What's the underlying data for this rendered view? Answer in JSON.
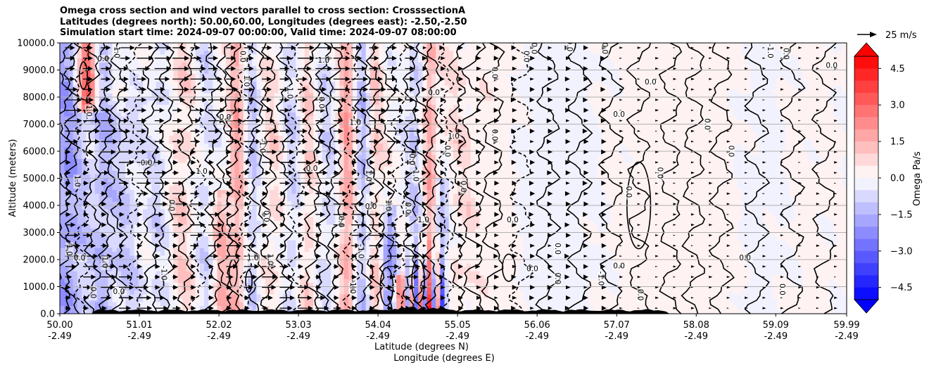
{
  "chart_data": {
    "type": "cross-section",
    "title_lines": [
      "Omega cross section and wind vectors parallel to cross section: CrosssectionA",
      "Latitudes (degrees north): 50.00,60.00, Longitudes (degrees east): -2.50,-2.50",
      "Simulation start time: 2024-09-07 00:00:00, Valid time: 2024-09-07 08:00:00"
    ],
    "ylabel": "Altitude (meters)",
    "xlabel_lat": "Latitude (degrees N)",
    "xlabel_lon": "Longitude (degrees E)",
    "ylim": [
      0,
      10000
    ],
    "y_ticks": [
      "0.0",
      "1000.0",
      "2000.0",
      "3000.0",
      "4000.0",
      "5000.0",
      "6000.0",
      "7000.0",
      "8000.0",
      "9000.0",
      "10000.0"
    ],
    "x_lat_ticks": [
      "50.00",
      "51.01",
      "52.02",
      "53.03",
      "54.04",
      "55.05",
      "56.06",
      "57.07",
      "58.08",
      "59.09",
      "59.99"
    ],
    "x_lon_ticks": [
      "-2.49",
      "-2.49",
      "-2.49",
      "-2.49",
      "-2.49",
      "-2.49",
      "-2.49",
      "-2.49",
      "-2.49",
      "-2.49",
      "-2.49"
    ],
    "grid": true,
    "colorbar": {
      "label": "Omega Pa/s",
      "range": [
        -5.0,
        5.0
      ],
      "ticks": [
        "4.5",
        "3.0",
        "1.5",
        "0.0",
        "−1.5",
        "−3.0",
        "−4.5"
      ],
      "tick_values": [
        4.5,
        3.0,
        1.5,
        0.0,
        -1.5,
        -3.0,
        -4.5
      ],
      "levels": 20,
      "cmap": "bwr"
    },
    "quiver_key": "25 m/s",
    "contour_labels": [
      {
        "text": "0.0",
        "lat": 50.55,
        "alt": 9350
      },
      {
        "text": "-1.0",
        "lat": 50.7,
        "alt": 9700
      },
      {
        "text": "1.0",
        "lat": 50.35,
        "alt": 7500
      },
      {
        "text": "0.0",
        "lat": 51.1,
        "alt": 5500
      },
      {
        "text": "1.0",
        "lat": 50.2,
        "alt": 4900
      },
      {
        "text": "-1.0",
        "lat": 50.1,
        "alt": 2400
      },
      {
        "text": "0.0",
        "lat": 50.25,
        "alt": 2000
      },
      {
        "text": "1.0",
        "lat": 50.55,
        "alt": 1900
      },
      {
        "text": "0.0",
        "lat": 50.4,
        "alt": 780
      },
      {
        "text": "0.0",
        "lat": 50.75,
        "alt": 750
      },
      {
        "text": "-1.0",
        "lat": 51.3,
        "alt": 1500
      },
      {
        "text": "0.0",
        "lat": 51.4,
        "alt": 4000
      },
      {
        "text": "1.0",
        "lat": 51.8,
        "alt": 5200
      },
      {
        "text": "0.0",
        "lat": 52.3,
        "alt": 9500
      },
      {
        "text": "1.0",
        "lat": 52.35,
        "alt": 8600
      },
      {
        "text": "0.0",
        "lat": 52.1,
        "alt": 7200
      },
      {
        "text": "-1.0",
        "lat": 52.9,
        "alt": 8200
      },
      {
        "text": "0.0",
        "lat": 53.3,
        "alt": 7800
      },
      {
        "text": "1.0",
        "lat": 53.35,
        "alt": 9300
      },
      {
        "text": "-1.0",
        "lat": 52.55,
        "alt": 6200
      },
      {
        "text": "0.0",
        "lat": 52.6,
        "alt": 3600
      },
      {
        "text": "0.0",
        "lat": 53.2,
        "alt": 5300
      },
      {
        "text": "1.0",
        "lat": 52.65,
        "alt": 2000
      },
      {
        "text": "0.0",
        "lat": 53.55,
        "alt": 3400
      },
      {
        "text": "1.0",
        "lat": 53.75,
        "alt": 7000
      },
      {
        "text": "1.0",
        "lat": 53.9,
        "alt": 5100
      },
      {
        "text": "-1.0",
        "lat": 53.8,
        "alt": 2300
      },
      {
        "text": "0.0",
        "lat": 53.95,
        "alt": 3900
      },
      {
        "text": "1.0",
        "lat": 54.15,
        "alt": 4000
      },
      {
        "text": "0.0",
        "lat": 54.4,
        "alt": 3900
      },
      {
        "text": "-1.0",
        "lat": 54.6,
        "alt": 3400
      },
      {
        "text": "0.0",
        "lat": 54.45,
        "alt": 5700
      },
      {
        "text": "0.0",
        "lat": 54.9,
        "alt": 6000
      },
      {
        "text": "1.0",
        "lat": 55.0,
        "alt": 6500
      },
      {
        "text": "0.0",
        "lat": 55.1,
        "alt": 4700
      },
      {
        "text": "0.0",
        "lat": 55.5,
        "alt": 6600
      },
      {
        "text": "0.0",
        "lat": 55.75,
        "alt": 3400
      },
      {
        "text": "0.0",
        "lat": 55.5,
        "alt": 8900
      },
      {
        "text": "0.0",
        "lat": 55.9,
        "alt": 9500
      },
      {
        "text": "0.0",
        "lat": 54.75,
        "alt": 8100
      },
      {
        "text": "0.0",
        "lat": 56.0,
        "alt": 9800
      },
      {
        "text": "0.0",
        "lat": 56.45,
        "alt": 9900
      },
      {
        "text": "0.0",
        "lat": 56.0,
        "alt": 1600
      },
      {
        "text": "0.0",
        "lat": 56.3,
        "alt": 1300
      },
      {
        "text": "0.0",
        "lat": 56.9,
        "alt": 9800
      },
      {
        "text": "0.0",
        "lat": 57.1,
        "alt": 7300
      },
      {
        "text": "0.0",
        "lat": 57.2,
        "alt": 4500
      },
      {
        "text": "0.0",
        "lat": 57.6,
        "alt": 5200
      },
      {
        "text": "0.0",
        "lat": 57.5,
        "alt": 8500
      },
      {
        "text": "0.0",
        "lat": 56.3,
        "alt": 2400
      },
      {
        "text": "-1.0",
        "lat": 56.85,
        "alt": 1300
      },
      {
        "text": "0.0",
        "lat": 57.1,
        "alt": 1700
      },
      {
        "text": "0.0",
        "lat": 58.2,
        "alt": 7000
      },
      {
        "text": "0.0",
        "lat": 58.5,
        "alt": 6000
      },
      {
        "text": "0.0",
        "lat": 58.7,
        "alt": 2000
      },
      {
        "text": "-1.0",
        "lat": 59.0,
        "alt": 9700
      },
      {
        "text": "0.0",
        "lat": 59.2,
        "alt": 9600
      },
      {
        "text": "0.0",
        "lat": 59.8,
        "alt": 9100
      },
      {
        "text": "0.0",
        "lat": 59.15,
        "alt": 900
      },
      {
        "text": "1.0",
        "lat": 54.5,
        "alt": 5100
      },
      {
        "text": "1.0",
        "lat": 52.45,
        "alt": 2000
      },
      {
        "text": "-1.0",
        "lat": 53.7,
        "alt": 1000
      },
      {
        "text": "0.0",
        "lat": 57.35,
        "alt": 700
      }
    ]
  }
}
